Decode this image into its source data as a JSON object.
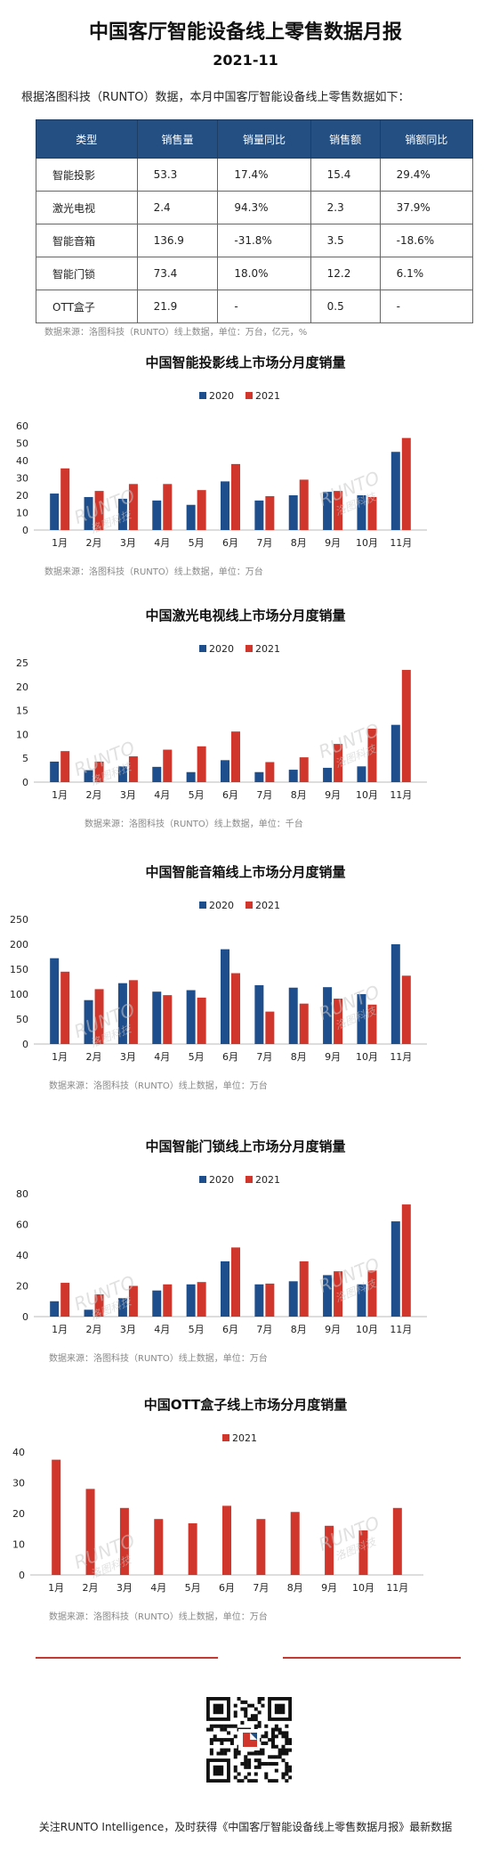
{
  "title": "中国客厅智能设备线上零售数据月报",
  "subtitle": "2021-11",
  "intro": "根据洛图科技（RUNTO）数据，本月中国客厅智能设备线上零售数据如下：",
  "table": {
    "headers": [
      "类型",
      "销售量",
      "销量同比",
      "销售额",
      "销额同比"
    ],
    "rows": [
      [
        "智能投影",
        "53.3",
        "17.4%",
        "15.4",
        "29.4%"
      ],
      [
        "激光电视",
        "2.4",
        "94.3%",
        "2.3",
        "37.9%"
      ],
      [
        "智能音箱",
        "136.9",
        "-31.8%",
        "3.5",
        "-18.6%"
      ],
      [
        "智能门锁",
        "73.4",
        "18.0%",
        "12.2",
        "6.1%"
      ],
      [
        "OTT盒子",
        "21.9",
        "-",
        "0.5",
        "-"
      ]
    ]
  },
  "table_source": "数据来源：洛图科技（RUNTO）线上数据，单位：万台，亿元，%",
  "colors": {
    "y2020": "#1f4e8c",
    "y2021": "#d0362b",
    "header": "#244f82"
  },
  "watermark": {
    "brand": "RUNTO",
    "cn": "洛图科技"
  },
  "chart_data": [
    {
      "type": "bar",
      "title": "中国智能投影线上市场分月度销量",
      "categories": [
        "1月",
        "2月",
        "3月",
        "4月",
        "5月",
        "6月",
        "7月",
        "8月",
        "9月",
        "10月",
        "11月"
      ],
      "series": [
        {
          "name": "2020",
          "values": [
            21,
            19,
            18,
            17,
            14.5,
            28,
            17,
            20,
            22,
            20,
            45
          ]
        },
        {
          "name": "2021",
          "values": [
            35.5,
            22.5,
            26.5,
            26.5,
            23,
            38,
            19.5,
            29,
            22.5,
            19,
            53
          ]
        }
      ],
      "ylim": [
        0,
        60
      ],
      "yticks": [
        0,
        10,
        20,
        30,
        40,
        50,
        60
      ],
      "source": "数据来源：洛图科技（RUNTO）线上数据，单位：万台"
    },
    {
      "type": "bar",
      "title": "中国激光电视线上市场分月度销量",
      "categories": [
        "1月",
        "2月",
        "3月",
        "4月",
        "5月",
        "6月",
        "7月",
        "8月",
        "9月",
        "10月",
        "11月"
      ],
      "series": [
        {
          "name": "2020",
          "values": [
            4.3,
            2.5,
            3.3,
            3.2,
            2.1,
            4.6,
            2.1,
            2.6,
            3,
            3.3,
            12
          ]
        },
        {
          "name": "2021",
          "values": [
            6.5,
            4.3,
            5.4,
            6.8,
            7.5,
            10.6,
            4.2,
            5.2,
            8,
            11.2,
            23.5
          ]
        }
      ],
      "ylim": [
        0,
        25
      ],
      "yticks": [
        0,
        5,
        10,
        15,
        20,
        25
      ],
      "source": "数据来源：洛图科技（RUNTO）线上数据，单位：千台"
    },
    {
      "type": "bar",
      "title": "中国智能音箱线上市场分月度销量",
      "categories": [
        "1月",
        "2月",
        "3月",
        "4月",
        "5月",
        "6月",
        "7月",
        "8月",
        "9月",
        "10月",
        "11月"
      ],
      "series": [
        {
          "name": "2020",
          "values": [
            172,
            88,
            122,
            105,
            108,
            190,
            118,
            113,
            114,
            100,
            200
          ]
        },
        {
          "name": "2021",
          "values": [
            145,
            110,
            128,
            98,
            93,
            142,
            65,
            81,
            91,
            79,
            137
          ]
        }
      ],
      "ylim": [
        0,
        250
      ],
      "yticks": [
        0,
        50,
        100,
        150,
        200,
        250
      ],
      "source": "数据来源：洛图科技（RUNTO）线上数据，单位：万台"
    },
    {
      "type": "bar",
      "title": "中国智能门锁线上市场分月度销量",
      "categories": [
        "1月",
        "2月",
        "3月",
        "4月",
        "5月",
        "6月",
        "7月",
        "8月",
        "9月",
        "10月",
        "11月"
      ],
      "series": [
        {
          "name": "2020",
          "values": [
            10,
            4.5,
            12,
            17,
            21,
            36,
            21,
            23,
            27,
            21,
            62
          ]
        },
        {
          "name": "2021",
          "values": [
            22,
            14.5,
            20,
            21,
            22.5,
            45,
            21.5,
            36,
            29.5,
            30,
            73
          ]
        }
      ],
      "ylim": [
        0,
        80
      ],
      "yticks": [
        0,
        20,
        40,
        60,
        80
      ],
      "source": "数据来源：洛图科技（RUNTO）线上数据，单位：万台"
    },
    {
      "type": "bar",
      "title": "中国OTT盒子线上市场分月度销量",
      "categories": [
        "1月",
        "2月",
        "3月",
        "4月",
        "5月",
        "6月",
        "7月",
        "8月",
        "9月",
        "10月",
        "11月"
      ],
      "series": [
        {
          "name": "2021",
          "values": [
            37.5,
            28,
            21.8,
            18.2,
            16.8,
            22.5,
            18.2,
            20.5,
            16,
            14.5,
            21.8
          ]
        }
      ],
      "ylim": [
        0,
        40
      ],
      "yticks": [
        0,
        10,
        20,
        30,
        40
      ],
      "source": "数据来源：洛图科技（RUNTO）线上数据，单位：万台"
    }
  ],
  "footer": "关注RUNTO Intelligence，及时获得《中国客厅智能设备线上零售数据月报》最新数据"
}
